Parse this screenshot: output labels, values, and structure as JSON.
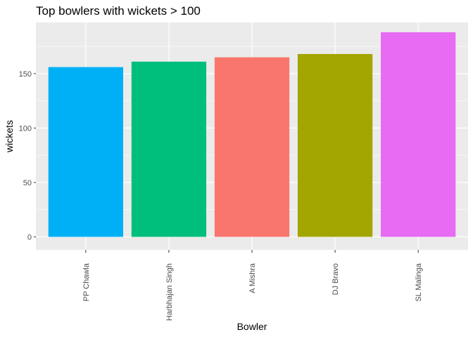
{
  "chart_data": {
    "type": "bar",
    "title": "Top bowlers with wickets > 100",
    "xlabel": "Bowler",
    "ylabel": "wickets",
    "categories": [
      "PP Chawla",
      "Harbhajan Singh",
      "A Mishra",
      "DJ Bravo",
      "SL Malinga"
    ],
    "values": [
      156,
      161,
      165,
      168,
      188
    ],
    "colors": [
      "#00B0F6",
      "#00BF7D",
      "#F8766D",
      "#A3A500",
      "#E76BF3"
    ],
    "ylim": [
      -12,
      197
    ],
    "yticks": [
      0,
      50,
      100,
      150
    ],
    "grid": true,
    "legend": "none",
    "panel_color": "#EBEBEB",
    "grid_color": "#FFFFFF"
  }
}
